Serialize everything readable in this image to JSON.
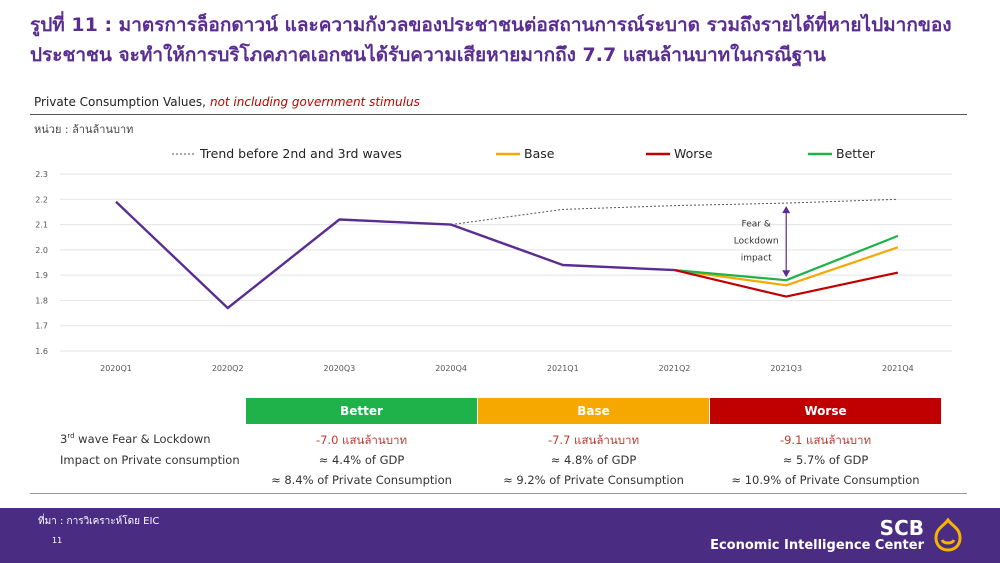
{
  "title": "รูปที่ 11 : มาตรการล็อกดาวน์ และความกังวลของประชาชนต่อสถานการณ์ระบาด รวมถึงรายได้ที่หายไปมากของประชาชน จะทำให้การบริโภคภาคเอกชนได้รับความเสียหายมากถึง 7.7 แสนล้านบาทในกรณีฐาน",
  "subtitle": "Private Consumption Values,",
  "subtitle_note": "not including government stimulus",
  "unit": "หน่วย : ล้านล้านบาท",
  "colors": {
    "purple": "#5a2d91",
    "base": "#f6a800",
    "worse": "#c00000",
    "better": "#1fb24a",
    "trend": "#555555"
  },
  "chart_data": {
    "type": "line",
    "categories": [
      "2020Q1",
      "2020Q2",
      "2020Q3",
      "2020Q4",
      "2021Q1",
      "2021Q2",
      "2021Q3",
      "2021Q4"
    ],
    "ylim": [
      1.6,
      2.3
    ],
    "yticks": [
      "1.6",
      "1.7",
      "1.8",
      "1.9",
      "2.0",
      "2.1",
      "2.2",
      "2.3"
    ],
    "legend_placement": "top",
    "series": [
      {
        "name": "",
        "key": "actual",
        "values": [
          2.19,
          1.77,
          2.12,
          2.1,
          1.94,
          1.92,
          null,
          null
        ]
      },
      {
        "name": "Trend before 2nd and 3rd waves",
        "key": "trend",
        "values": [
          null,
          null,
          null,
          2.1,
          2.16,
          2.175,
          2.185,
          2.2
        ]
      },
      {
        "name": "Base",
        "key": "base",
        "values": [
          null,
          null,
          null,
          null,
          null,
          1.92,
          1.86,
          2.01
        ]
      },
      {
        "name": "Worse",
        "key": "worse",
        "values": [
          null,
          null,
          null,
          null,
          null,
          1.92,
          1.815,
          1.91
        ]
      },
      {
        "name": "Better",
        "key": "better",
        "values": [
          null,
          null,
          null,
          null,
          null,
          1.92,
          1.88,
          2.055
        ]
      }
    ],
    "annotation": {
      "lines": [
        "Fear &",
        "Lockdown",
        "impact"
      ],
      "category": "2021Q3",
      "from": 2.185,
      "to": 1.88
    }
  },
  "table": {
    "headers": [
      "Better",
      "Base",
      "Worse"
    ],
    "row_label_line1": "3rd wave Fear & Lockdown",
    "row_label_line2": "Impact on Private consumption",
    "better": {
      "value": "-7.0 แสนล้านบาท",
      "gdp": "≈ 4.4% of GDP",
      "pc": "≈ 8.4% of Private Consumption"
    },
    "base": {
      "value": "-7.7 แสนล้านบาท",
      "gdp": "≈ 4.8% of GDP",
      "pc": "≈ 9.2% of Private Consumption"
    },
    "worse": {
      "value": "-9.1 แสนล้านบาท",
      "gdp": "≈ 5.7% of GDP",
      "pc": "≈ 10.9% of Private Consumption"
    }
  },
  "footer": {
    "source": "ที่มา : การวิเคราะห์โดย EIC",
    "page": "11",
    "brand": "SCB",
    "brand_sub": "Economic Intelligence Center"
  }
}
